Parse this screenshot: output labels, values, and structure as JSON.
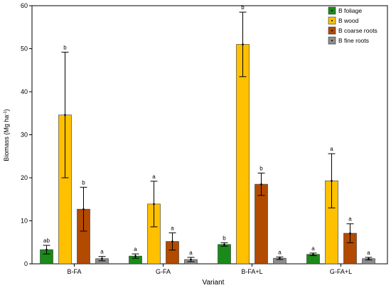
{
  "chart_data": {
    "type": "bar",
    "title": "",
    "xlabel": "Variant",
    "ylabel": "Biomass (Mg ha",
    "ylabel_sup": "-1",
    "ylabel_end": ")",
    "ylim": [
      0,
      60
    ],
    "yticks": [
      "0",
      "10",
      "20",
      "30",
      "40",
      "50",
      "60"
    ],
    "categories": [
      "B-FA",
      "G-FA",
      "B-FA+L",
      "G-FA+L"
    ],
    "grid": false,
    "legend_position": "top-right",
    "series": [
      {
        "name": "B foliage",
        "color": "#1a8a1a",
        "values": [
          3.3,
          1.8,
          4.5,
          2.2
        ],
        "err": [
          1.0,
          0.5,
          0.4,
          0.3
        ],
        "labels": [
          "ab",
          "a",
          "b",
          "a"
        ]
      },
      {
        "name": "B wood",
        "color": "#ffc000",
        "values": [
          34.6,
          13.9,
          51.0,
          19.3
        ],
        "err": [
          14.6,
          5.3,
          7.5,
          6.3
        ],
        "labels": [
          "b",
          "a",
          "b",
          "a"
        ]
      },
      {
        "name": "B coarse roots",
        "color": "#b24a00",
        "values": [
          12.7,
          5.2,
          18.5,
          7.1
        ],
        "err": [
          5.1,
          2.0,
          2.6,
          2.2
        ],
        "labels": [
          "b",
          "a",
          "b",
          "a"
        ]
      },
      {
        "name": "B fine roots",
        "color": "#8c8c8c",
        "values": [
          1.2,
          1.0,
          1.3,
          1.2
        ],
        "err": [
          0.5,
          0.5,
          0.3,
          0.3
        ],
        "labels": [
          "a",
          "a",
          "a",
          "a"
        ]
      }
    ]
  }
}
